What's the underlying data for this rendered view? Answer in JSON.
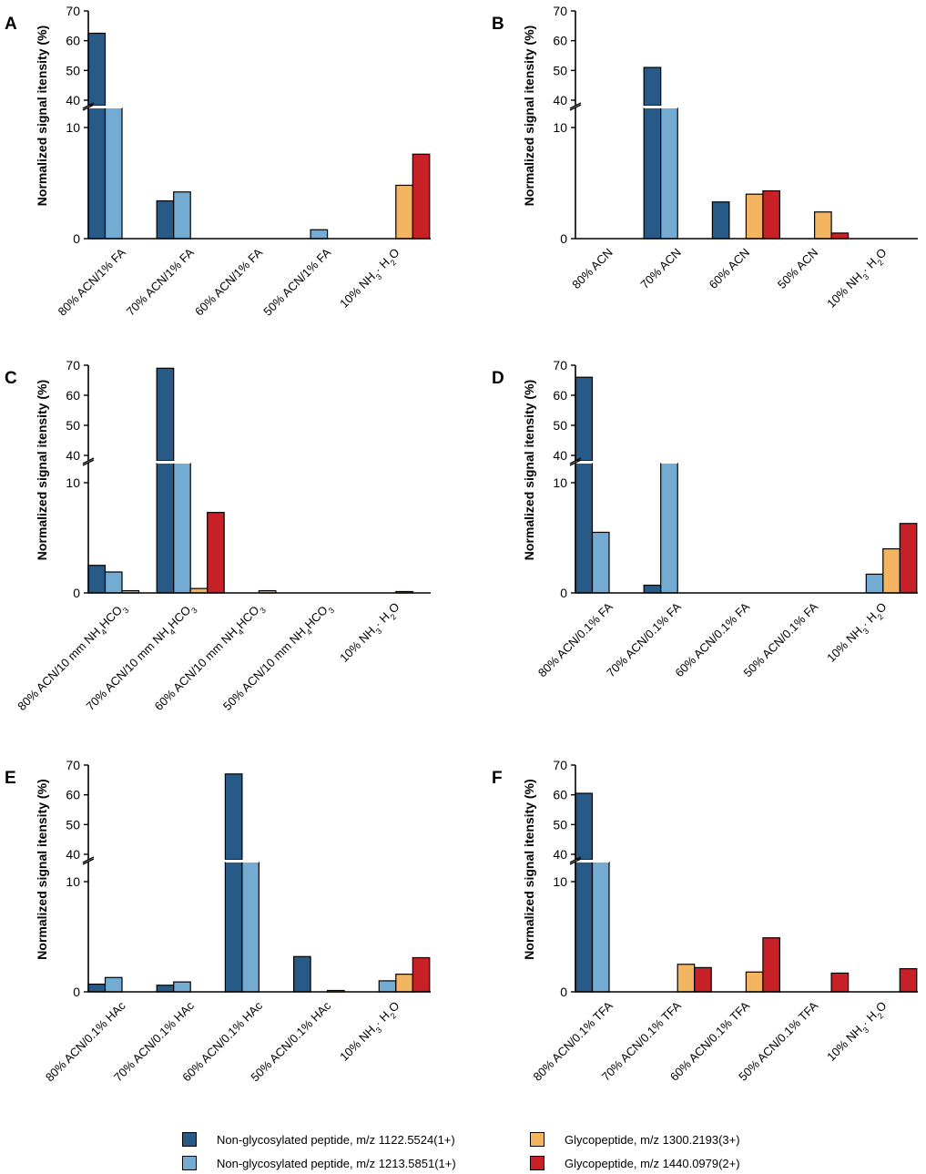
{
  "colors": {
    "series": [
      "#285a88",
      "#74abd2",
      "#f4b562",
      "#c72127"
    ],
    "axis": "#000000"
  },
  "legend": {
    "items": [
      {
        "label": "Non-glycosylated peptide, m/z 1122.5524(1+)"
      },
      {
        "label": "Non-glycosylated peptide, m/z 1213.5851(1+)"
      },
      {
        "label": "Glycopeptide, m/z 1300.2193(3+)"
      },
      {
        "label": "Glycopeptide, m/z 1440.0979(2+)"
      }
    ]
  },
  "chart_data": [
    {
      "panel": "A",
      "type": "bar",
      "ylabel": "Normalized signal itensity (%)",
      "axis_break": {
        "lower_range": [
          0,
          10
        ],
        "upper_range": [
          40,
          70
        ],
        "lower_ticks": [
          0,
          10
        ],
        "upper_ticks": [
          40,
          50,
          60,
          70
        ]
      },
      "categories": [
        "80% ACN/1% FA",
        "70% ACN/1% FA",
        "60% ACN/1% FA",
        "50% ACN/1% FA",
        "10% NH₃· H₂O"
      ],
      "series": [
        {
          "name": "Non-glycosylated peptide, m/z 1122.5524(1+)",
          "values": [
            62.5,
            3.4,
            0,
            0,
            0
          ]
        },
        {
          "name": "Non-glycosylated peptide, m/z 1213.5851(1+)",
          "values": [
            12,
            4.2,
            0,
            0.8,
            0
          ]
        },
        {
          "name": "Glycopeptide, m/z 1300.2193(3+)",
          "values": [
            0,
            0,
            0,
            0,
            4.8
          ]
        },
        {
          "name": "Glycopeptide, m/z 1440.0979(2+)",
          "values": [
            0,
            0,
            0,
            0,
            7.6
          ]
        }
      ]
    },
    {
      "panel": "B",
      "type": "bar",
      "ylabel": "Normalized signal itensity (%)",
      "axis_break": {
        "lower_range": [
          0,
          10
        ],
        "upper_range": [
          40,
          70
        ],
        "lower_ticks": [
          0,
          10
        ],
        "upper_ticks": [
          40,
          50,
          60,
          70
        ]
      },
      "categories": [
        "80% ACN",
        "70% ACN",
        "60% ACN",
        "50% ACN",
        "10% NH₃· H₂O"
      ],
      "series": [
        {
          "name": "Non-glycosylated peptide, m/z 1122.5524(1+)",
          "values": [
            0,
            51,
            3.3,
            0,
            0
          ]
        },
        {
          "name": "Non-glycosylated peptide, m/z 1213.5851(1+)",
          "values": [
            0,
            12,
            0,
            0,
            0
          ]
        },
        {
          "name": "Glycopeptide, m/z 1300.2193(3+)",
          "values": [
            0,
            0,
            4,
            2.4,
            0
          ]
        },
        {
          "name": "Glycopeptide, m/z 1440.0979(2+)",
          "values": [
            0,
            0,
            4.3,
            0.5,
            0
          ]
        }
      ]
    },
    {
      "panel": "C",
      "type": "bar",
      "ylabel": "Normalized signal itensity (%)",
      "axis_break": {
        "lower_range": [
          0,
          10
        ],
        "upper_range": [
          40,
          70
        ],
        "lower_ticks": [
          0,
          10
        ],
        "upper_ticks": [
          40,
          50,
          60,
          70
        ]
      },
      "categories": [
        "80% ACN/10 mm NH₄HCO₃",
        "70% ACN/10 mm NH₄HCO₃",
        "60% ACN/10 mm NH₄HCO₃",
        "50% ACN/10 mm NH₄HCO₃",
        "10% NH₃· H₂O"
      ],
      "series": [
        {
          "name": "Non-glycosylated peptide, m/z 1122.5524(1+)",
          "values": [
            2.5,
            69,
            0,
            0,
            0
          ]
        },
        {
          "name": "Non-glycosylated peptide, m/z 1213.5851(1+)",
          "values": [
            1.9,
            12,
            0,
            0,
            0
          ]
        },
        {
          "name": "Glycopeptide, m/z 1300.2193(3+)",
          "values": [
            0.2,
            0.4,
            0.2,
            0,
            0.1
          ]
        },
        {
          "name": "Glycopeptide, m/z 1440.0979(2+)",
          "values": [
            0,
            7.3,
            0,
            0,
            0
          ]
        }
      ]
    },
    {
      "panel": "D",
      "type": "bar",
      "ylabel": "Normalized signal itensity (%)",
      "axis_break": {
        "lower_range": [
          0,
          10
        ],
        "upper_range": [
          40,
          70
        ],
        "lower_ticks": [
          0,
          10
        ],
        "upper_ticks": [
          40,
          50,
          60,
          70
        ]
      },
      "categories": [
        "80% ACN/0.1% FA",
        "70% ACN/0.1% FA",
        "60% ACN/0.1% FA",
        "50% ACN/0.1% FA",
        "10% NH₃· H₂O"
      ],
      "series": [
        {
          "name": "Non-glycosylated peptide, m/z 1122.5524(1+)",
          "values": [
            66,
            0.7,
            0,
            0,
            0
          ]
        },
        {
          "name": "Non-glycosylated peptide, m/z 1213.5851(1+)",
          "values": [
            5.5,
            12,
            0,
            0,
            1.7
          ]
        },
        {
          "name": "Glycopeptide, m/z 1300.2193(3+)",
          "values": [
            0,
            0,
            0,
            0,
            4
          ]
        },
        {
          "name": "Glycopeptide, m/z 1440.0979(2+)",
          "values": [
            0,
            0,
            0,
            0,
            6.3
          ]
        }
      ]
    },
    {
      "panel": "E",
      "type": "bar",
      "ylabel": "Normalized signal itensity (%)",
      "axis_break": {
        "lower_range": [
          0,
          10
        ],
        "upper_range": [
          40,
          70
        ],
        "lower_ticks": [
          0,
          10
        ],
        "upper_ticks": [
          40,
          50,
          60,
          70
        ]
      },
      "categories": [
        "80% ACN/0.1% HAc",
        "70% ACN/0.1% HAc",
        "60% ACN/0.1% HAc",
        "50% ACN/0.1% HAc",
        "10% NH₃· H₂O"
      ],
      "series": [
        {
          "name": "Non-glycosylated peptide, m/z 1122.5524(1+)",
          "values": [
            0.7,
            0.6,
            67,
            3.2,
            0
          ]
        },
        {
          "name": "Non-glycosylated peptide, m/z 1213.5851(1+)",
          "values": [
            1.3,
            0.9,
            12,
            0,
            1
          ]
        },
        {
          "name": "Glycopeptide, m/z 1300.2193(3+)",
          "values": [
            0,
            0,
            0,
            0.1,
            1.6
          ]
        },
        {
          "name": "Glycopeptide, m/z 1440.0979(2+)",
          "values": [
            0,
            0,
            0,
            0,
            3.1
          ]
        }
      ]
    },
    {
      "panel": "F",
      "type": "bar",
      "ylabel": "Normalized signal itensity (%)",
      "axis_break": {
        "lower_range": [
          0,
          10
        ],
        "upper_range": [
          40,
          70
        ],
        "lower_ticks": [
          0,
          10
        ],
        "upper_ticks": [
          40,
          50,
          60,
          70
        ]
      },
      "categories": [
        "80% ACN/0.1% TFA",
        "70% ACN/0.1% TFA",
        "60% ACN/0.1% TFA",
        "50% ACN/0.1% TFA",
        "10% NH₃· H₂O"
      ],
      "series": [
        {
          "name": "Non-glycosylated peptide, m/z 1122.5524(1+)",
          "values": [
            60.5,
            0,
            0,
            0,
            0
          ]
        },
        {
          "name": "Non-glycosylated peptide, m/z 1213.5851(1+)",
          "values": [
            12,
            0,
            0,
            0,
            0
          ]
        },
        {
          "name": "Glycopeptide, m/z 1300.2193(3+)",
          "values": [
            0,
            2.5,
            1.8,
            0,
            0
          ]
        },
        {
          "name": "Glycopeptide, m/z 1440.0979(2+)",
          "values": [
            0,
            2.2,
            4.9,
            1.7,
            2.1
          ]
        }
      ]
    }
  ]
}
